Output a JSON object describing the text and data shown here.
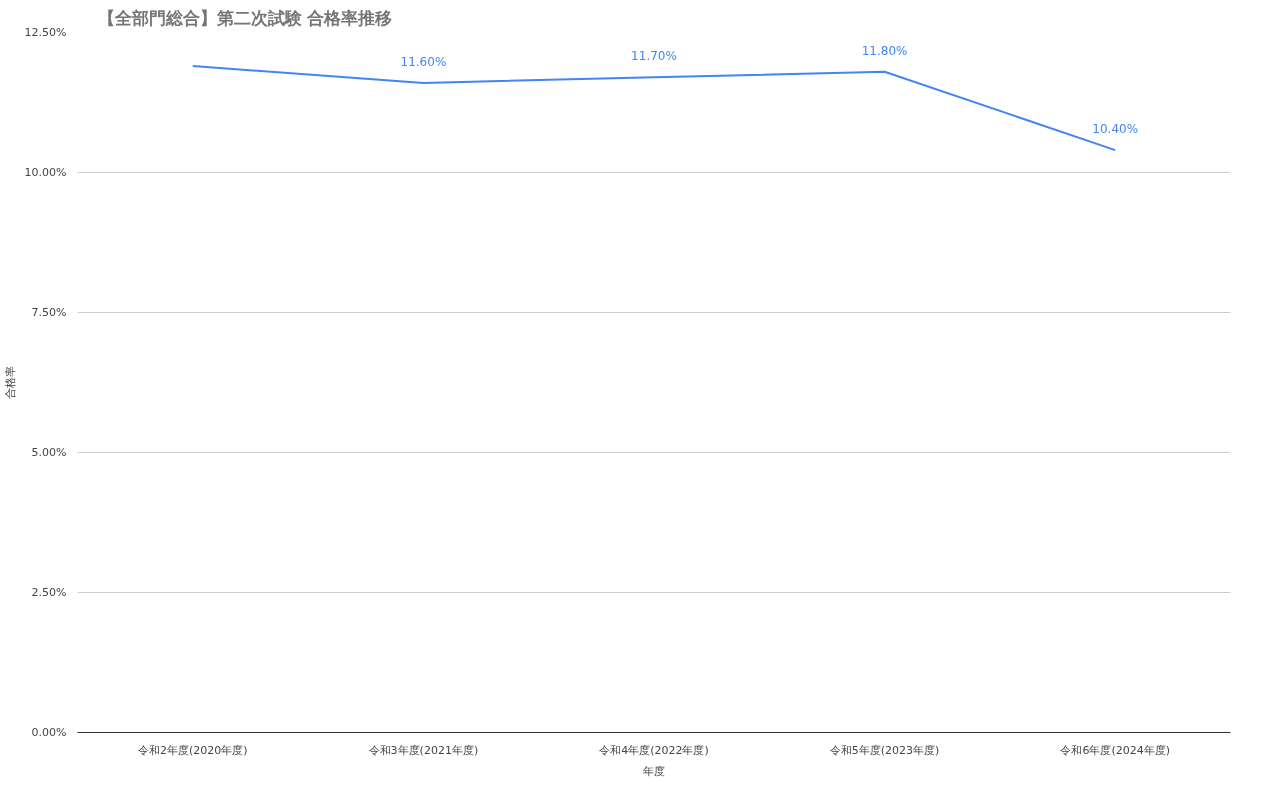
{
  "chart_data": {
    "type": "line",
    "title": "【全部門総合】第二次試験 合格率推移",
    "xlabel": "年度",
    "ylabel": "合格率",
    "categories": [
      "令和2年度(2020年度)",
      "令和3年度(2021年度)",
      "令和4年度(2022年度)",
      "令和5年度(2023年度)",
      "令和6年度(2024年度)"
    ],
    "series": [
      {
        "color": "#4285f4",
        "values": [
          11.9,
          11.6,
          11.7,
          11.8,
          10.4
        ],
        "value_labels": [
          null,
          "11.60%",
          "11.70%",
          "11.80%",
          "10.40%"
        ]
      }
    ],
    "ylim": [
      0,
      12.5
    ],
    "yticks": [
      {
        "value": 0,
        "label": "0.00%"
      },
      {
        "value": 2.5,
        "label": "2.50%"
      },
      {
        "value": 5,
        "label": "5.00%"
      },
      {
        "value": 7.5,
        "label": "7.50%"
      },
      {
        "value": 10,
        "label": "10.00%"
      },
      {
        "value": 12.5,
        "label": "12.50%"
      }
    ],
    "grid": "y",
    "marker": "none",
    "line_style": "solid"
  }
}
